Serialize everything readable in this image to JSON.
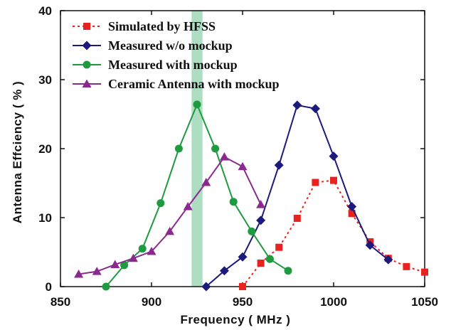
{
  "chart_data": {
    "type": "line",
    "xlabel": "Frequency ( MHz )",
    "ylabel": "Antenna Effciency ( % )",
    "xlim": [
      850,
      1050
    ],
    "ylim": [
      0,
      40
    ],
    "xticks": [
      850,
      900,
      950,
      1000,
      1050
    ],
    "yticks": [
      0,
      10,
      20,
      30,
      40
    ],
    "legend_position": "top-left",
    "grid": false,
    "highlight_band": {
      "x": [
        922,
        928
      ],
      "color": "#9fd8b6"
    },
    "series": [
      {
        "name": "Simulated by HFSS",
        "color": "#e8231f",
        "marker": "square",
        "dash": true,
        "x": [
          950,
          960,
          970,
          980,
          990,
          1000,
          1010,
          1020,
          1030,
          1040,
          1050
        ],
        "y": [
          0,
          3.4,
          5.7,
          9.9,
          15.1,
          15.4,
          10.6,
          6.5,
          4.1,
          2.9,
          2.1
        ]
      },
      {
        "name": "Measured w/o mockup",
        "color": "#1c1a7c",
        "marker": "diamond",
        "dash": false,
        "x": [
          930,
          940,
          950,
          960,
          970,
          980,
          990,
          1000,
          1010,
          1020,
          1030
        ],
        "y": [
          0,
          2.3,
          4.3,
          9.6,
          17.6,
          26.3,
          25.8,
          18.9,
          11.6,
          6.0,
          3.9
        ]
      },
      {
        "name": "Measured with mockup",
        "color": "#1e9b3e",
        "marker": "circle",
        "dash": false,
        "x": [
          875,
          885,
          895,
          905,
          915,
          925,
          935,
          945,
          955,
          965,
          975
        ],
        "y": [
          0,
          3.1,
          5.5,
          12.1,
          20.0,
          26.4,
          20.0,
          12.3,
          8.0,
          4.0,
          2.3
        ]
      },
      {
        "name": "Ceramic Antenna with mockup",
        "color": "#8b2a8e",
        "marker": "triangle",
        "dash": false,
        "x": [
          860,
          870,
          880,
          890,
          900,
          910,
          920,
          930,
          940,
          950,
          960
        ],
        "y": [
          1.8,
          2.2,
          3.2,
          4.1,
          5.1,
          8.0,
          11.6,
          15.1,
          18.8,
          17.4,
          11.9
        ]
      }
    ]
  }
}
